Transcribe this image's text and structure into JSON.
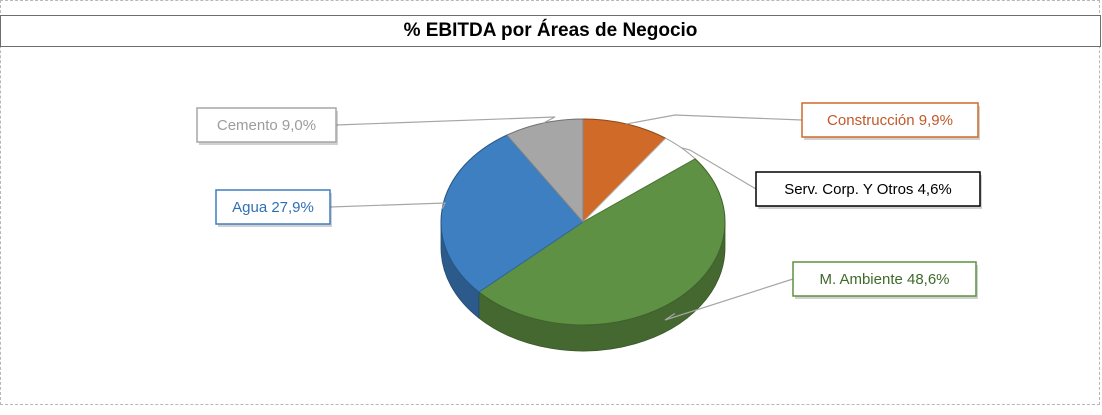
{
  "chart_data": {
    "type": "pie",
    "title": "% EBITDA por Áreas de Negocio",
    "slices": [
      {
        "label": "Construcción",
        "value": 9.9,
        "display": "Construcción 9,9%",
        "color": "#d06a28"
      },
      {
        "label": "Serv. Corp. Y Otros",
        "value": 4.6,
        "display": "Serv. Corp. Y Otros 4,6%",
        "color": "#ffffff"
      },
      {
        "label": "M. Ambiente",
        "value": 48.6,
        "display": "M. Ambiente 48,6%",
        "color": "#5e9143"
      },
      {
        "label": "Agua",
        "value": 27.9,
        "display": "Agua 27,9%",
        "color": "#3d7fc1"
      },
      {
        "label": "Cemento",
        "value": 9.0,
        "display": "Cemento 9,0%",
        "color": "#a6a6a6"
      }
    ],
    "label_text_colors": [
      "#c0592a",
      "#000000",
      "#3e6b2a",
      "#2f70b5",
      "#9c9c9c"
    ],
    "start": "top",
    "direction": "clockwise",
    "style": "3d"
  }
}
